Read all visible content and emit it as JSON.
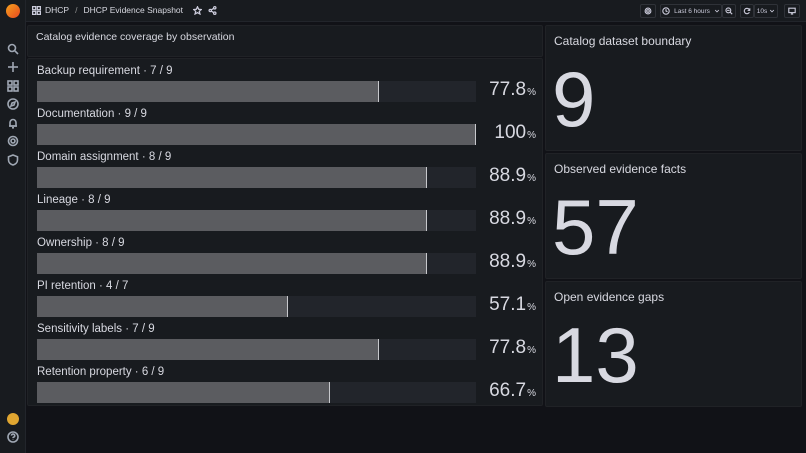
{
  "breadcrumb": {
    "folder": "DHCP",
    "separator": "/",
    "dashboard": "DHCP Evidence Snapshot"
  },
  "toolbar": {
    "time_range": "Last 6 hours",
    "refresh_interval": "10s"
  },
  "bar_panel": {
    "title": "Catalog evidence coverage by observation",
    "rows": [
      {
        "label": "Backup requirement · 7 / 9",
        "value": "77.8",
        "unit": "%",
        "fraction": 0.778
      },
      {
        "label": "Documentation · 9 / 9",
        "value": "100",
        "unit": "%",
        "fraction": 1.0
      },
      {
        "label": "Domain assignment · 8 / 9",
        "value": "88.9",
        "unit": "%",
        "fraction": 0.889
      },
      {
        "label": "Lineage · 8 / 9",
        "value": "88.9",
        "unit": "%",
        "fraction": 0.889
      },
      {
        "label": "Ownership · 8 / 9",
        "value": "88.9",
        "unit": "%",
        "fraction": 0.889
      },
      {
        "label": "PI retention · 4 / 7",
        "value": "57.1",
        "unit": "%",
        "fraction": 0.571
      },
      {
        "label": "Sensitivity labels · 7 / 9",
        "value": "77.8",
        "unit": "%",
        "fraction": 0.778
      },
      {
        "label": "Retention property · 6 / 9",
        "value": "66.7",
        "unit": "%",
        "fraction": 0.667
      }
    ]
  },
  "stats": [
    {
      "title": "Catalog dataset boundary",
      "value": "9"
    },
    {
      "title": "Observed evidence facts",
      "value": "57"
    },
    {
      "title": "Open evidence gaps",
      "value": "13"
    }
  ],
  "colors": {
    "background": "#111217",
    "panel": "#181b1f",
    "bar_fill": "#5b5c60",
    "bar_track": "#22252b",
    "text": "#d8d9e1"
  }
}
